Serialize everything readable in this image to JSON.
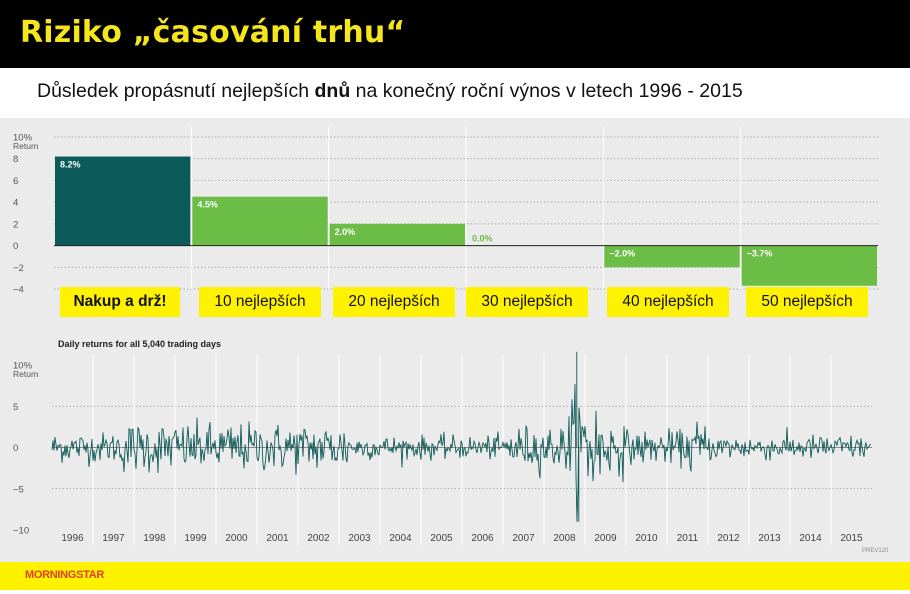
{
  "header": {
    "title": "Riziko „časování trhu“",
    "subtitle_before": "Důsledek propásnutí nejlepších ",
    "subtitle_bold": "dnů",
    "subtitle_after": " na konečný roční výnos v letech 1996 - 2015"
  },
  "colors": {
    "title_bg": "#000000",
    "title_text": "#f5e51c",
    "highlight": "#fff200",
    "bar_dark": "#0b5a5a",
    "bar_green": "#6cbd45",
    "line": "#0e5a58"
  },
  "chart_data": [
    {
      "type": "bar",
      "ylabel": "Return",
      "ylim": [
        -4,
        10
      ],
      "yticks": [
        "10%",
        "8",
        "6",
        "4",
        "2",
        "0",
        "−2",
        "−4"
      ],
      "categories": [
        "Nakup a drž!",
        "10 nejlepších",
        "20 nejlepších",
        "30 nejlepších",
        "40 nejlepších",
        "50 nejlepších"
      ],
      "values": [
        8.2,
        4.5,
        2.0,
        0.0,
        -2.0,
        -3.7
      ],
      "value_labels": [
        "8.2%",
        "4.5%",
        "2.0%",
        "0.0%",
        "−2.0%",
        "−3.7%"
      ],
      "grid": true
    },
    {
      "type": "line",
      "title": "Daily returns for all 5,040 trading days",
      "ylabel": "Return",
      "ylim": [
        -10,
        10
      ],
      "yticks": [
        "10%",
        "5",
        "0",
        "−5",
        "−10"
      ],
      "x": [
        "1996",
        "1997",
        "1998",
        "1999",
        "2000",
        "2001",
        "2002",
        "2003",
        "2004",
        "2005",
        "2006",
        "2007",
        "2008",
        "2009",
        "2010",
        "2011",
        "2012",
        "2013",
        "2014",
        "2015"
      ],
      "approx_range": {
        "max": 11.6,
        "min": -9.0
      },
      "grid": true
    }
  ],
  "footer": {
    "logo": "MORNINGSTAR",
    "credit": "PREV120"
  }
}
